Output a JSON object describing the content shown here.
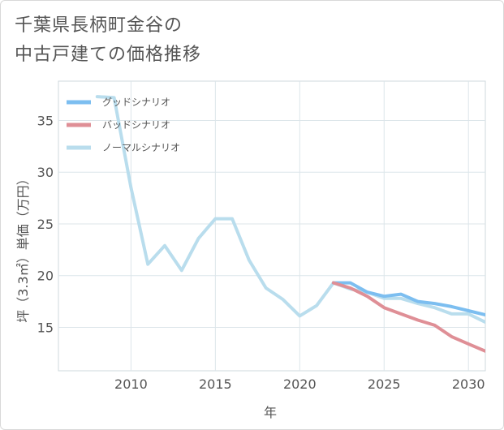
{
  "title": {
    "line1": "千葉県長柄町金谷の",
    "line2": "中古戸建ての価格推移"
  },
  "chart_data": {
    "type": "line",
    "title": "千葉県長柄町金谷の中古戸建ての価格推移",
    "xlabel": "年",
    "ylabel": "坪（3.3㎡）単価（万円）",
    "xlim": [
      2005.7,
      2031.0
    ],
    "ylim": [
      10.8,
      38.8
    ],
    "x_ticks": [
      2010,
      2015,
      2020,
      2025,
      2030
    ],
    "y_ticks": [
      15,
      20,
      25,
      30,
      35
    ],
    "grid": true,
    "legend_position": "top-left",
    "series": [
      {
        "name": "グッドシナリオ",
        "color": "#7cbef0",
        "x": [
          2022,
          2023,
          2024,
          2025,
          2026,
          2027,
          2028,
          2029,
          2030,
          2031
        ],
        "values": [
          19.3,
          19.3,
          18.4,
          18.0,
          18.2,
          17.5,
          17.3,
          17.0,
          16.6,
          16.2
        ]
      },
      {
        "name": "バッドシナリオ",
        "color": "#df8f96",
        "x": [
          2022,
          2023,
          2024,
          2025,
          2026,
          2027,
          2028,
          2029,
          2030,
          2031
        ],
        "values": [
          19.3,
          18.8,
          18.0,
          16.9,
          16.3,
          15.7,
          15.2,
          14.1,
          13.4,
          12.7
        ]
      },
      {
        "name": "ノーマルシナリオ",
        "color": "#b9dded",
        "x": [
          2008,
          2009,
          2010,
          2011,
          2012,
          2013,
          2014,
          2015,
          2016,
          2017,
          2018,
          2019,
          2020,
          2021,
          2022,
          2023,
          2024,
          2025,
          2026,
          2027,
          2028,
          2029,
          2030,
          2031
        ],
        "values": [
          37.3,
          37.2,
          28.5,
          21.1,
          22.9,
          20.5,
          23.6,
          25.5,
          25.5,
          21.5,
          18.8,
          17.7,
          16.1,
          17.1,
          19.3,
          18.7,
          18.4,
          17.8,
          17.8,
          17.3,
          16.9,
          16.3,
          16.3,
          15.5
        ]
      }
    ]
  }
}
